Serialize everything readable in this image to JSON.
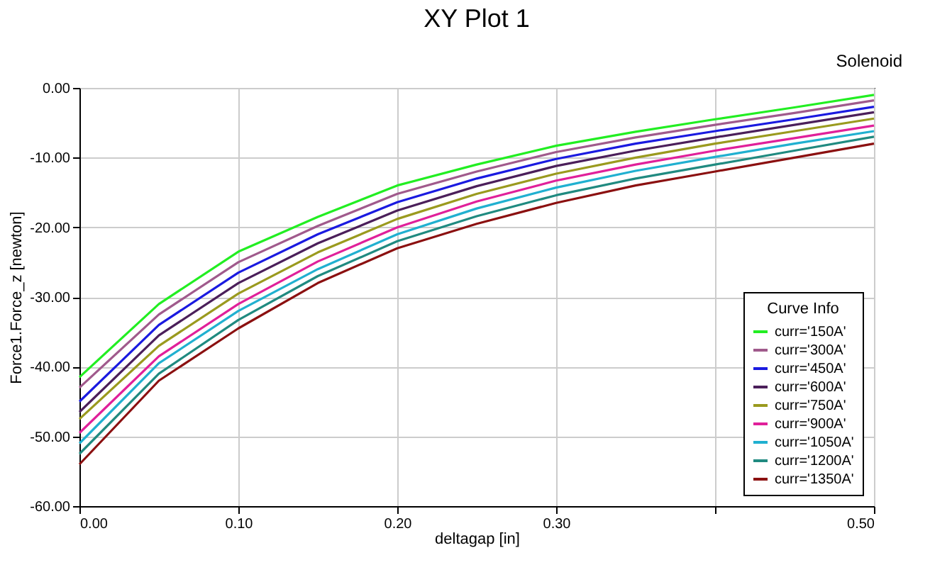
{
  "chart_data": {
    "type": "line",
    "title": "XY Plot 1",
    "xlabel": "deltagap [in]",
    "ylabel": "Force1.Force_z [newton]",
    "legend_title": "Curve Info",
    "annotations": [
      "Solenoid"
    ],
    "x": [
      0,
      0.05,
      0.1,
      0.15,
      0.2,
      0.25,
      0.3,
      0.35,
      0.4,
      0.45,
      0.5
    ],
    "series": [
      {
        "name": "curr='150A'",
        "color": "#22ee22",
        "values": [
          -41.5,
          -31,
          -23.5,
          -18.5,
          -14,
          -11,
          -8.3,
          -6.3,
          -4.5,
          -2.8,
          -1.0
        ]
      },
      {
        "name": "curr='300A'",
        "color": "#a05a8c",
        "values": [
          -43,
          -32.5,
          -25,
          -19.8,
          -15.2,
          -12,
          -9.2,
          -7.1,
          -5.3,
          -3.6,
          -1.8
        ]
      },
      {
        "name": "curr='450A'",
        "color": "#1a1ae0",
        "values": [
          -45,
          -34,
          -26.5,
          -21,
          -16.4,
          -13,
          -10.2,
          -8,
          -6.2,
          -4.5,
          -2.7
        ]
      },
      {
        "name": "curr='600A'",
        "color": "#4b1f5a",
        "values": [
          -46.5,
          -35.5,
          -28,
          -22.3,
          -17.6,
          -14.1,
          -11.2,
          -9,
          -7.1,
          -5.3,
          -3.5
        ]
      },
      {
        "name": "curr='750A'",
        "color": "#9a9a1e",
        "values": [
          -47.5,
          -37,
          -29.5,
          -23.6,
          -18.8,
          -15.2,
          -12.3,
          -10,
          -8,
          -6.2,
          -4.4
        ]
      },
      {
        "name": "curr='900A'",
        "color": "#e0209a",
        "values": [
          -49.5,
          -38.5,
          -31,
          -24.9,
          -20,
          -16.3,
          -13.3,
          -11,
          -9,
          -7.2,
          -5.4
        ]
      },
      {
        "name": "curr='1050A'",
        "color": "#20b0d0",
        "values": [
          -51,
          -39.5,
          -32,
          -26,
          -21,
          -17.3,
          -14.3,
          -11.9,
          -9.9,
          -8,
          -6.2
        ]
      },
      {
        "name": "curr='1200A'",
        "color": "#208a80",
        "values": [
          -52.5,
          -41,
          -33.3,
          -27,
          -22,
          -18.4,
          -15.4,
          -13,
          -11,
          -9,
          -7
        ]
      },
      {
        "name": "curr='1350A'",
        "color": "#8b1010",
        "values": [
          -54,
          -42,
          -34.5,
          -28,
          -23,
          -19.5,
          -16.5,
          -14,
          -12,
          -10,
          -8
        ]
      }
    ],
    "xlim": [
      0,
      0.5
    ],
    "ylim": [
      -60,
      0
    ],
    "xticks": [
      {
        "value": 0,
        "label": "0.00"
      },
      {
        "value": 0.1,
        "label": "0.10"
      },
      {
        "value": 0.2,
        "label": "0.20"
      },
      {
        "value": 0.3,
        "label": "0.30"
      },
      {
        "value": 0.4,
        "label": null
      },
      {
        "value": 0.5,
        "label": "0.50"
      }
    ],
    "yticks": [
      {
        "value": -60,
        "label": "-60.00"
      },
      {
        "value": -50,
        "label": "-50.00"
      },
      {
        "value": -40,
        "label": "-40.00"
      },
      {
        "value": -30,
        "label": "-30.00"
      },
      {
        "value": -20,
        "label": "-20.00"
      },
      {
        "value": -10,
        "label": "-10.00"
      },
      {
        "value": 0,
        "label": "0.00"
      }
    ],
    "grid": true,
    "legend": "bottom right",
    "line_style": "solid"
  }
}
